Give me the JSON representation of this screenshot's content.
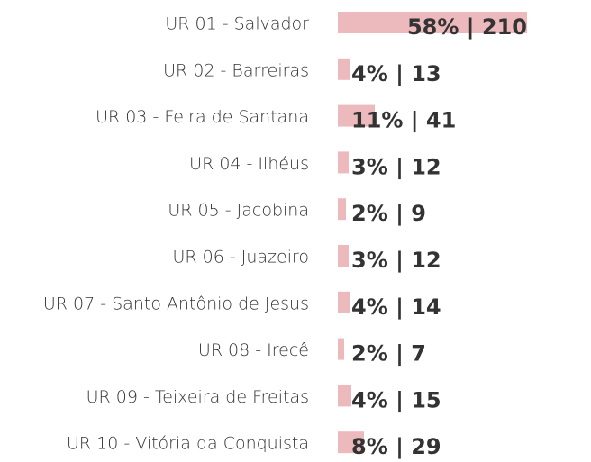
{
  "chart_data": {
    "type": "bar",
    "orientation": "horizontal",
    "color": "#ecb9bd",
    "categories": [
      "UR 01 - Salvador",
      "UR 02 - Barreiras",
      "UR 03 - Feira de Santana",
      "UR 04 - Ilhéus",
      "UR 05 - Jacobina",
      "UR 06 - Juazeiro",
      "UR 07 - Santo Antônio de Jesus",
      "UR 08 - Irecê",
      "UR 09 - Teixeira de Freitas",
      "UR 10 - Vitória da Conquista"
    ],
    "values": [
      210,
      13,
      41,
      12,
      9,
      12,
      14,
      7,
      15,
      29
    ],
    "value_labels": [
      "58% | 210",
      "4% | 13",
      "11% | 41",
      "3% | 12",
      "2% | 9",
      "3% | 12",
      "4% | 14",
      "2% | 7",
      "4% | 15",
      "8% | 29"
    ]
  }
}
